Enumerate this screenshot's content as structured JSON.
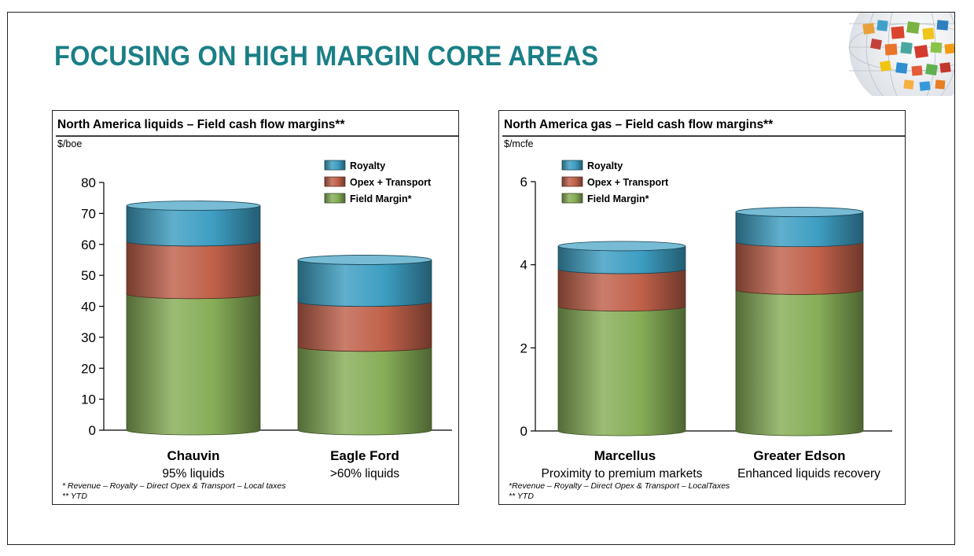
{
  "slide": {
    "title": "FOCUSING ON HIGH MARGIN CORE AREAS"
  },
  "colors": {
    "title": "#1a7f86",
    "royalty": "#3d9ec2",
    "opex_transport": "#c0614a",
    "field_margin": "#86ad57"
  },
  "chart_data": [
    {
      "type": "bar",
      "stacked": true,
      "style": "3d-cylinder",
      "title": "North America liquids – Field cash flow margins**",
      "ylabel": "$/boe",
      "ylim": [
        0,
        80
      ],
      "yticks": [
        0,
        10,
        20,
        30,
        40,
        50,
        60,
        70,
        80
      ],
      "legend_position": "top-right",
      "categories": [
        "Chauvin",
        "Eagle Ford"
      ],
      "category_sublabels": [
        "95% liquids",
        ">60% liquids"
      ],
      "series": [
        {
          "name": "Field Margin*",
          "color": "#86ad57",
          "values": [
            44,
            27
          ]
        },
        {
          "name": "Opex + Transport",
          "color": "#c0614a",
          "values": [
            17,
            14.5
          ]
        },
        {
          "name": "Royalty",
          "color": "#3d9ec2",
          "values": [
            11.5,
            13.5
          ]
        }
      ],
      "footnotes": [
        "* Revenue – Royalty – Direct Opex & Transport – Local taxes",
        "** YTD"
      ]
    },
    {
      "type": "bar",
      "stacked": true,
      "style": "3d-cylinder",
      "title": "North America gas – Field cash flow margins**",
      "ylabel": "$/mcfe",
      "ylim": [
        0,
        6
      ],
      "yticks": [
        0,
        2,
        4,
        6
      ],
      "legend_position": "top-right",
      "categories": [
        "Marcellus",
        "Greater Edson"
      ],
      "category_sublabels": [
        "Proximity to premium markets",
        "Enhanced liquids recovery"
      ],
      "series": [
        {
          "name": "Field Margin*",
          "color": "#86ad57",
          "values": [
            3.0,
            3.4
          ]
        },
        {
          "name": "Opex + Transport",
          "color": "#c0614a",
          "values": [
            0.9,
            1.15
          ]
        },
        {
          "name": "Royalty",
          "color": "#3d9ec2",
          "values": [
            0.55,
            0.72
          ]
        }
      ],
      "footnotes": [
        "*Revenue – Royalty – Direct Opex & Transport – LocalTaxes",
        "** YTD"
      ]
    }
  ]
}
